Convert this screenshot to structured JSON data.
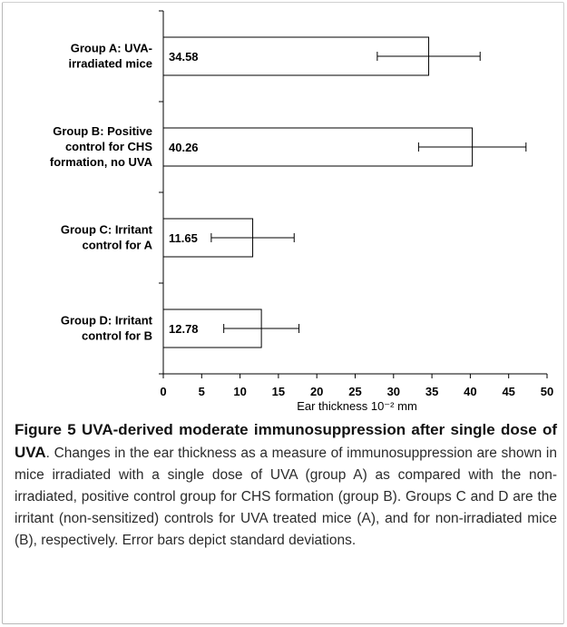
{
  "chart_data": {
    "type": "bar",
    "orientation": "horizontal",
    "categories": [
      [
        "Group A: UVA-",
        "irradiated mice"
      ],
      [
        "Group B: Positive",
        "control for CHS",
        "formation, no UVA"
      ],
      [
        "Group C: Irritant",
        "control for A"
      ],
      [
        "Group D: Irritant",
        "control for B"
      ]
    ],
    "values": [
      34.58,
      40.26,
      11.65,
      12.78
    ],
    "value_labels": [
      "34.58",
      "40.26",
      "11.65",
      "12.78"
    ],
    "error": [
      6.7,
      7.0,
      5.4,
      4.9
    ],
    "xlabel": "Ear thickness 10⁻² mm",
    "xlim": [
      0,
      50
    ],
    "xticks": [
      "0",
      "5",
      "10",
      "15",
      "20",
      "25",
      "30",
      "35",
      "40",
      "45",
      "50"
    ],
    "grid": false,
    "colors": {
      "bar_fill": "#ffffff",
      "bar_stroke": "#000000",
      "axis": "#000000"
    }
  },
  "caption": {
    "label": "Figure 5",
    "title": "UVA-derived moderate immunosuppression after single dose of UVA",
    "text": ". Changes in the ear thickness as a measure of immunosuppression are shown in mice irradiated with a single dose of UVA (group A) as compared with the non-irradiated, positive control group for CHS formation (group B). Groups C and D are the irritant (non-sensitized) controls for UVA treated mice (A), and for non-irradiated mice (B), respectively. Error bars depict standard deviations."
  }
}
